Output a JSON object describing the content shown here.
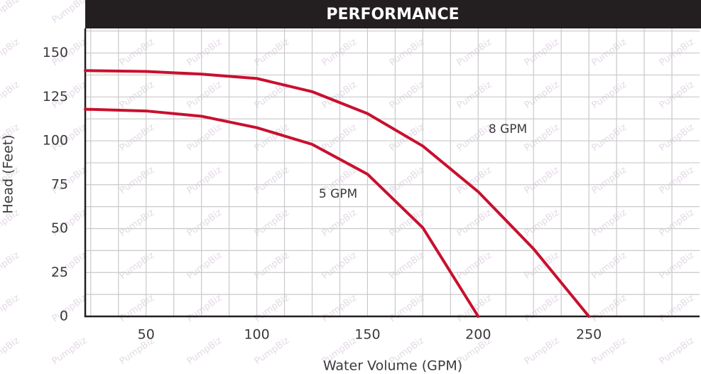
{
  "chart_data": {
    "type": "line",
    "title": "PERFORMANCE",
    "xlabel": "Water Volume (GPM)",
    "ylabel": "Head (Feet)",
    "watermark": "PumpBiz",
    "xlim": [
      22.5,
      300
    ],
    "ylim": [
      0,
      164
    ],
    "xticks": [
      50,
      100,
      150,
      200,
      250
    ],
    "yticks": [
      0,
      25,
      50,
      75,
      100,
      125,
      150
    ],
    "xgrid": [
      25,
      37.5,
      50,
      62.5,
      75,
      87.5,
      100,
      112.5,
      125,
      137.5,
      150,
      162.5,
      175,
      187.5,
      200,
      212.5,
      225,
      237.5,
      250,
      262.5,
      275,
      287.5
    ],
    "ygrid": [
      12.5,
      25,
      37.5,
      50,
      62.5,
      75,
      87.5,
      100,
      112.5,
      125,
      137.5,
      150,
      162.5
    ],
    "grid": true,
    "series": [
      {
        "name": "8 GPM",
        "color": "#c8102e",
        "x": [
          22.5,
          50,
          75,
          100,
          125,
          150,
          175,
          200,
          225,
          250
        ],
        "values": [
          140,
          139.5,
          138,
          135.5,
          128,
          115.5,
          97,
          71,
          38.5,
          0
        ]
      },
      {
        "name": "5 GPM",
        "color": "#c8102e",
        "x": [
          22.5,
          50,
          75,
          100,
          125,
          150,
          175,
          200
        ],
        "values": [
          118,
          117,
          114,
          107.5,
          98,
          81,
          50.5,
          0
        ]
      }
    ]
  }
}
